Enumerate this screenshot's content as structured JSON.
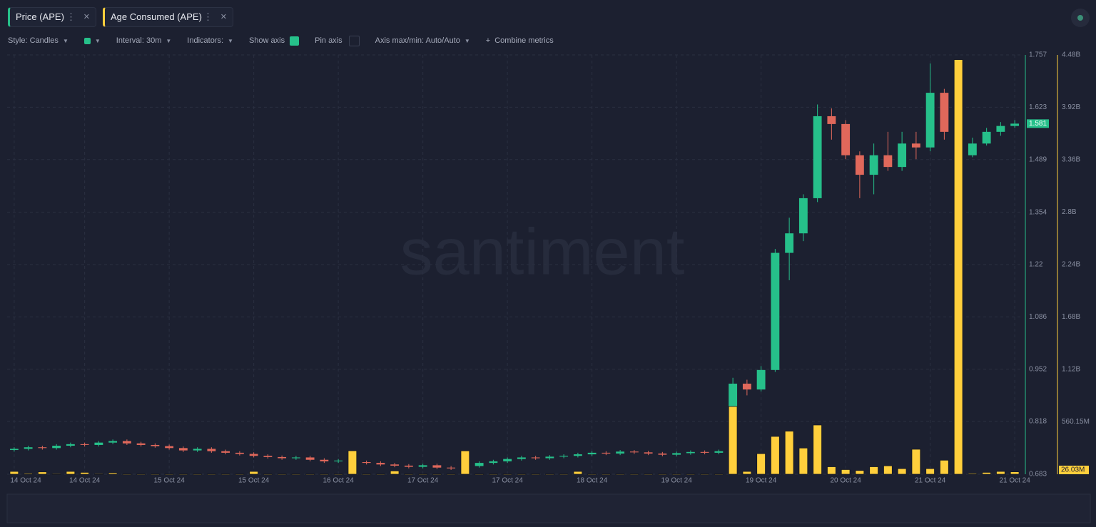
{
  "toolbar": {
    "style": "Style: Candles",
    "interval": "Interval: 30m",
    "indicators": "Indicators:",
    "show_axis": "Show axis",
    "pin_axis": "Pin axis",
    "axis_range": "Axis max/min: Auto/Auto",
    "combine": "Combine metrics"
  },
  "chart_data": {
    "type": "candlestick",
    "watermark": "santiment",
    "grid": true,
    "categories": [
      "14 Oct 24",
      null,
      null,
      null,
      null,
      "14 Oct 24",
      null,
      null,
      null,
      null,
      null,
      "15 Oct 24",
      null,
      null,
      null,
      null,
      null,
      "15 Oct 24",
      null,
      null,
      null,
      null,
      null,
      "16 Oct 24",
      null,
      null,
      null,
      null,
      null,
      "17 Oct 24",
      null,
      null,
      null,
      null,
      null,
      "17 Oct 24",
      null,
      null,
      null,
      null,
      null,
      "18 Oct 24",
      null,
      null,
      null,
      null,
      null,
      "19 Oct 24",
      null,
      null,
      null,
      null,
      null,
      "19 Oct 24",
      null,
      null,
      null,
      null,
      null,
      "20 Oct 24",
      null,
      null,
      null,
      null,
      null,
      "21 Oct 24",
      null,
      null,
      null,
      null,
      null,
      "21 Oct 24"
    ],
    "ylim": [
      0.683,
      1.757
    ],
    "yticks": [
      0.683,
      0.818,
      0.952,
      1.086,
      1.22,
      1.354,
      1.489,
      1.623,
      1.757
    ],
    "y2lim": [
      0,
      4480000000
    ],
    "y2ticks": [
      {
        "value": 560150000,
        "label": "560.15M"
      },
      {
        "value": 1120000000,
        "label": "1.12B"
      },
      {
        "value": 1680000000,
        "label": "1.68B"
      },
      {
        "value": 2240000000,
        "label": "2.24B"
      },
      {
        "value": 2800000000,
        "label": "2.8B"
      },
      {
        "value": 3360000000,
        "label": "3.36B"
      },
      {
        "value": 3920000000,
        "label": "3.92B"
      },
      {
        "value": 4480000000,
        "label": "4.48B"
      }
    ],
    "series": [
      {
        "name": "Price (APE)",
        "type": "candlestick",
        "color": "#26c08a",
        "down_color": "#e0685b",
        "open": [
          0.745,
          0.748,
          0.752,
          0.75,
          0.756,
          0.76,
          0.758,
          0.764,
          0.768,
          0.762,
          0.758,
          0.755,
          0.75,
          0.744,
          0.748,
          0.742,
          0.738,
          0.735,
          0.73,
          0.727,
          0.724,
          0.726,
          0.72,
          0.716,
          0.718,
          0.714,
          0.712,
          0.708,
          0.705,
          0.702,
          0.706,
          0.7,
          0.698,
          0.704,
          0.712,
          0.716,
          0.722,
          0.726,
          0.724,
          0.728,
          0.73,
          0.734,
          0.738,
          0.736,
          0.741,
          0.739,
          0.736,
          0.733,
          0.737,
          0.74,
          0.738,
          0.742,
          0.915,
          0.9,
          0.95,
          1.25,
          1.3,
          1.39,
          1.6,
          1.58,
          1.5,
          1.45,
          1.5,
          1.47,
          1.53,
          1.52,
          1.66,
          1.56,
          1.5,
          1.53,
          1.56,
          1.575
        ],
        "high": [
          0.752,
          0.756,
          0.756,
          0.76,
          0.764,
          0.764,
          0.768,
          0.772,
          0.772,
          0.766,
          0.762,
          0.759,
          0.754,
          0.752,
          0.752,
          0.746,
          0.742,
          0.739,
          0.734,
          0.731,
          0.73,
          0.73,
          0.724,
          0.722,
          0.722,
          0.718,
          0.716,
          0.712,
          0.709,
          0.71,
          0.71,
          0.704,
          0.708,
          0.716,
          0.72,
          0.726,
          0.73,
          0.73,
          0.732,
          0.734,
          0.738,
          0.742,
          0.742,
          0.745,
          0.745,
          0.743,
          0.74,
          0.741,
          0.744,
          0.744,
          0.746,
          0.93,
          0.925,
          0.96,
          1.26,
          1.34,
          1.4,
          1.63,
          1.62,
          1.59,
          1.51,
          1.53,
          1.56,
          1.56,
          1.56,
          1.735,
          1.67,
          1.57,
          1.545,
          1.57,
          1.585,
          1.59
        ],
        "low": [
          0.741,
          0.744,
          0.746,
          0.746,
          0.752,
          0.754,
          0.754,
          0.76,
          0.758,
          0.754,
          0.751,
          0.746,
          0.74,
          0.74,
          0.738,
          0.734,
          0.731,
          0.726,
          0.723,
          0.72,
          0.72,
          0.716,
          0.712,
          0.712,
          0.71,
          0.708,
          0.704,
          0.701,
          0.698,
          0.698,
          0.696,
          0.694,
          0.694,
          0.7,
          0.708,
          0.712,
          0.718,
          0.72,
          0.72,
          0.724,
          0.726,
          0.73,
          0.732,
          0.732,
          0.735,
          0.732,
          0.729,
          0.729,
          0.733,
          0.734,
          0.734,
          0.74,
          0.885,
          0.895,
          0.945,
          1.18,
          1.28,
          1.38,
          1.54,
          1.49,
          1.39,
          1.4,
          1.46,
          1.46,
          1.49,
          1.51,
          1.54,
          1.48,
          1.495,
          1.525,
          1.55,
          1.57
        ],
        "close": [
          0.748,
          0.752,
          0.75,
          0.756,
          0.76,
          0.758,
          0.764,
          0.768,
          0.762,
          0.758,
          0.755,
          0.75,
          0.744,
          0.748,
          0.742,
          0.738,
          0.735,
          0.73,
          0.727,
          0.724,
          0.726,
          0.72,
          0.716,
          0.718,
          0.714,
          0.712,
          0.708,
          0.705,
          0.702,
          0.706,
          0.7,
          0.698,
          0.704,
          0.712,
          0.716,
          0.722,
          0.726,
          0.724,
          0.728,
          0.73,
          0.734,
          0.738,
          0.736,
          0.741,
          0.739,
          0.736,
          0.733,
          0.737,
          0.74,
          0.738,
          0.742,
          0.915,
          0.9,
          0.95,
          1.25,
          1.3,
          1.39,
          1.6,
          1.58,
          1.5,
          1.45,
          1.5,
          1.47,
          1.53,
          1.52,
          1.66,
          1.56,
          1.5,
          1.53,
          1.56,
          1.575,
          1.581
        ]
      },
      {
        "name": "Age Consumed (APE)",
        "type": "bar",
        "axis": "y2",
        "color": "#ffcf3c",
        "last_value_label": "26.03M",
        "values": [
          30000000,
          10000000,
          25000000,
          5000000,
          30000000,
          20000000,
          5000000,
          15000000,
          3000000,
          3000000,
          3000000,
          3000000,
          3000000,
          3000000,
          3000000,
          3000000,
          3000000,
          30000000,
          3000000,
          3000000,
          3000000,
          3000000,
          3000000,
          3000000,
          251000000,
          3000000,
          3000000,
          35000000,
          3000000,
          3000000,
          3000000,
          3000000,
          250000000,
          3000000,
          3000000,
          3000000,
          3000000,
          3000000,
          3000000,
          3000000,
          30000000,
          3000000,
          3000000,
          3000000,
          3000000,
          3000000,
          3000000,
          3000000,
          3000000,
          3000000,
          3000000,
          724000000,
          30000000,
          220000000,
          404000000,
          460000000,
          280000000,
          526000000,
          80000000,
          50000000,
          40000000,
          80000000,
          90000000,
          60000000,
          267000000,
          60000000,
          150000000,
          4430000000,
          10000000,
          20000000,
          30000000,
          26030000
        ]
      }
    ]
  }
}
